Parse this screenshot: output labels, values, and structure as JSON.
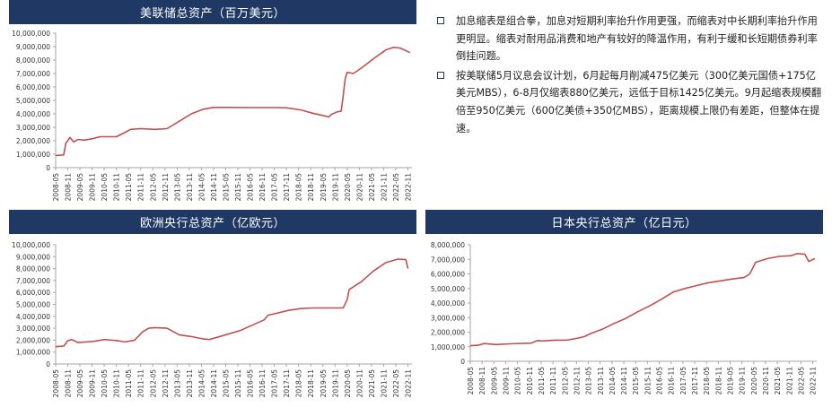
{
  "panels": {
    "fed": {
      "title": "美联储总资产（百万美元）"
    },
    "ecb": {
      "title": "欧洲央行总资产（亿欧元）"
    },
    "boj": {
      "title": "日本央行总资产（亿日元）"
    }
  },
  "notes": [
    {
      "text": "加息缩表是组合拳，加息对短期利率抬升作用更强，而缩表对中长期利率抬升作用更明显。缩表对耐用品消费和地产有较好的降温作用，有利于缓和长短期债券利率倒挂问题。"
    },
    {
      "text": "按美联储5月议息会议计划，6月起每月削减475亿美元（300亿美元国债+175亿美元MBS），6-8月仅缩表880亿美元，远低于目标1425亿美元。9月起缩表规模翻倍至950亿美元（600亿美债+350亿MBS），距离规模上限仍有差距，但整体在提速。"
    }
  ],
  "colors": {
    "line": "#c0504d",
    "header": "#1f3864",
    "axis": "#a6a6a6"
  },
  "chart_data": [
    {
      "id": "fed",
      "type": "line",
      "title": "美联储总资产（百万美元）",
      "ylim": [
        0,
        10000000
      ],
      "yticks": [
        "0",
        "1,000,000",
        "2,000,000",
        "3,000,000",
        "4,000,000",
        "5,000,000",
        "6,000,000",
        "7,000,000",
        "8,000,000",
        "9,000,000",
        "10,000,000"
      ],
      "xticks": [
        "2008-05",
        "2008-11",
        "2009-05",
        "2009-11",
        "2010-05",
        "2010-11",
        "2011-05",
        "2011-11",
        "2012-05",
        "2012-11",
        "2013-05",
        "2013-11",
        "2014-05",
        "2014-11",
        "2015-05",
        "2015-11",
        "2016-05",
        "2016-11",
        "2017-05",
        "2017-11",
        "2018-05",
        "2018-11",
        "2019-05",
        "2019-11",
        "2020-05",
        "2020-11",
        "2021-05",
        "2021-11",
        "2022-05",
        "2022-11"
      ],
      "series": [
        {
          "values": [
            [
              "2008-05",
              900000
            ],
            [
              "2008-09",
              950000
            ],
            [
              "2008-10",
              1800000
            ],
            [
              "2008-12",
              2250000
            ],
            [
              "2009-02",
              1900000
            ],
            [
              "2009-04",
              2100000
            ],
            [
              "2009-07",
              2050000
            ],
            [
              "2009-11",
              2150000
            ],
            [
              "2010-03",
              2300000
            ],
            [
              "2010-11",
              2300000
            ],
            [
              "2011-03",
              2600000
            ],
            [
              "2011-06",
              2850000
            ],
            [
              "2011-11",
              2900000
            ],
            [
              "2012-06",
              2850000
            ],
            [
              "2012-12",
              2900000
            ],
            [
              "2013-06",
              3450000
            ],
            [
              "2013-12",
              4000000
            ],
            [
              "2014-06",
              4350000
            ],
            [
              "2014-11",
              4480000
            ],
            [
              "2015-06",
              4480000
            ],
            [
              "2016-06",
              4470000
            ],
            [
              "2017-06",
              4470000
            ],
            [
              "2017-11",
              4450000
            ],
            [
              "2018-06",
              4300000
            ],
            [
              "2018-12",
              4050000
            ],
            [
              "2019-06",
              3850000
            ],
            [
              "2019-08",
              3770000
            ],
            [
              "2019-09",
              3950000
            ],
            [
              "2019-12",
              4150000
            ],
            [
              "2020-02",
              4200000
            ],
            [
              "2020-03",
              5300000
            ],
            [
              "2020-04",
              6600000
            ],
            [
              "2020-05",
              7100000
            ],
            [
              "2020-08",
              7000000
            ],
            [
              "2020-12",
              7400000
            ],
            [
              "2021-06",
              8100000
            ],
            [
              "2021-12",
              8750000
            ],
            [
              "2022-04",
              8950000
            ],
            [
              "2022-07",
              8900000
            ],
            [
              "2022-10",
              8700000
            ],
            [
              "2022-12",
              8550000
            ]
          ]
        }
      ]
    },
    {
      "id": "ecb",
      "type": "line",
      "title": "欧洲央行总资产（亿欧元）",
      "ylim": [
        0,
        10000000
      ],
      "yticks": [
        "0",
        "1,000,000",
        "2,000,000",
        "3,000,000",
        "4,000,000",
        "5,000,000",
        "6,000,000",
        "7,000,000",
        "8,000,000",
        "9,000,000",
        "10,000,000"
      ],
      "xticks": [
        "2008-05",
        "2008-11",
        "2009-05",
        "2009-11",
        "2010-05",
        "2010-11",
        "2011-05",
        "2011-11",
        "2012-05",
        "2012-11",
        "2013-05",
        "2013-11",
        "2014-05",
        "2014-11",
        "2015-05",
        "2015-11",
        "2016-05",
        "2016-11",
        "2017-05",
        "2017-11",
        "2018-05",
        "2018-11",
        "2019-05",
        "2019-11",
        "2020-05",
        "2020-11",
        "2021-05",
        "2021-11",
        "2022-05",
        "2022-11"
      ],
      "series": [
        {
          "values": [
            [
              "2008-05",
              1450000
            ],
            [
              "2008-09",
              1500000
            ],
            [
              "2008-11",
              1950000
            ],
            [
              "2009-01",
              2050000
            ],
            [
              "2009-04",
              1800000
            ],
            [
              "2009-08",
              1850000
            ],
            [
              "2009-12",
              1900000
            ],
            [
              "2010-05",
              2050000
            ],
            [
              "2010-12",
              1950000
            ],
            [
              "2011-03",
              1850000
            ],
            [
              "2011-08",
              2000000
            ],
            [
              "2011-12",
              2700000
            ],
            [
              "2012-03",
              3000000
            ],
            [
              "2012-06",
              3050000
            ],
            [
              "2012-12",
              3000000
            ],
            [
              "2013-06",
              2450000
            ],
            [
              "2013-12",
              2300000
            ],
            [
              "2014-06",
              2100000
            ],
            [
              "2014-09",
              2050000
            ],
            [
              "2014-12",
              2200000
            ],
            [
              "2015-06",
              2500000
            ],
            [
              "2015-12",
              2800000
            ],
            [
              "2016-06",
              3250000
            ],
            [
              "2016-12",
              3700000
            ],
            [
              "2017-02",
              4100000
            ],
            [
              "2017-06",
              4250000
            ],
            [
              "2017-12",
              4500000
            ],
            [
              "2018-06",
              4650000
            ],
            [
              "2018-12",
              4700000
            ],
            [
              "2019-06",
              4700000
            ],
            [
              "2019-12",
              4700000
            ],
            [
              "2020-03",
              4700000
            ],
            [
              "2020-05",
              5400000
            ],
            [
              "2020-06",
              6250000
            ],
            [
              "2020-12",
              6900000
            ],
            [
              "2021-06",
              7800000
            ],
            [
              "2021-12",
              8500000
            ],
            [
              "2022-06",
              8800000
            ],
            [
              "2022-10",
              8750000
            ],
            [
              "2022-11",
              8000000
            ]
          ]
        }
      ]
    },
    {
      "id": "boj",
      "type": "line",
      "title": "日本央行总资产（亿日元）",
      "ylim": [
        0,
        8000000
      ],
      "yticks": [
        "0",
        "1,000,000",
        "2,000,000",
        "3,000,000",
        "4,000,000",
        "5,000,000",
        "6,000,000",
        "7,000,000",
        "8,000,000"
      ],
      "xticks": [
        "2008-05",
        "2008-11",
        "2009-05",
        "2009-11",
        "2010-05",
        "2010-11",
        "2011-05",
        "2011-11",
        "2012-05",
        "2012-11",
        "2013-05",
        "2013-11",
        "2014-05",
        "2014-11",
        "2015-05",
        "2015-11",
        "2016-05",
        "2016-11",
        "2017-05",
        "2017-11",
        "2018-05",
        "2018-11",
        "2019-05",
        "2019-11",
        "2020-05",
        "2020-11",
        "2021-05",
        "2021-11",
        "2022-05",
        "2022-11"
      ],
      "series": [
        {
          "values": [
            [
              "2008-05",
              1070000
            ],
            [
              "2008-09",
              1100000
            ],
            [
              "2008-12",
              1220000
            ],
            [
              "2009-06",
              1150000
            ],
            [
              "2010-01",
              1200000
            ],
            [
              "2010-12",
              1250000
            ],
            [
              "2011-03",
              1420000
            ],
            [
              "2011-06",
              1400000
            ],
            [
              "2011-12",
              1450000
            ],
            [
              "2012-06",
              1450000
            ],
            [
              "2012-12",
              1600000
            ],
            [
              "2013-03",
              1700000
            ],
            [
              "2013-06",
              1900000
            ],
            [
              "2013-12",
              2200000
            ],
            [
              "2014-06",
              2600000
            ],
            [
              "2014-12",
              2950000
            ],
            [
              "2015-06",
              3400000
            ],
            [
              "2015-12",
              3800000
            ],
            [
              "2016-06",
              4250000
            ],
            [
              "2016-12",
              4750000
            ],
            [
              "2017-06",
              5000000
            ],
            [
              "2017-12",
              5200000
            ],
            [
              "2018-06",
              5400000
            ],
            [
              "2018-12",
              5520000
            ],
            [
              "2019-06",
              5650000
            ],
            [
              "2019-12",
              5750000
            ],
            [
              "2020-03",
              6000000
            ],
            [
              "2020-06",
              6800000
            ],
            [
              "2020-12",
              7050000
            ],
            [
              "2021-06",
              7200000
            ],
            [
              "2021-12",
              7250000
            ],
            [
              "2022-03",
              7400000
            ],
            [
              "2022-07",
              7350000
            ],
            [
              "2022-09",
              6850000
            ],
            [
              "2022-12",
              7050000
            ]
          ]
        }
      ]
    }
  ]
}
